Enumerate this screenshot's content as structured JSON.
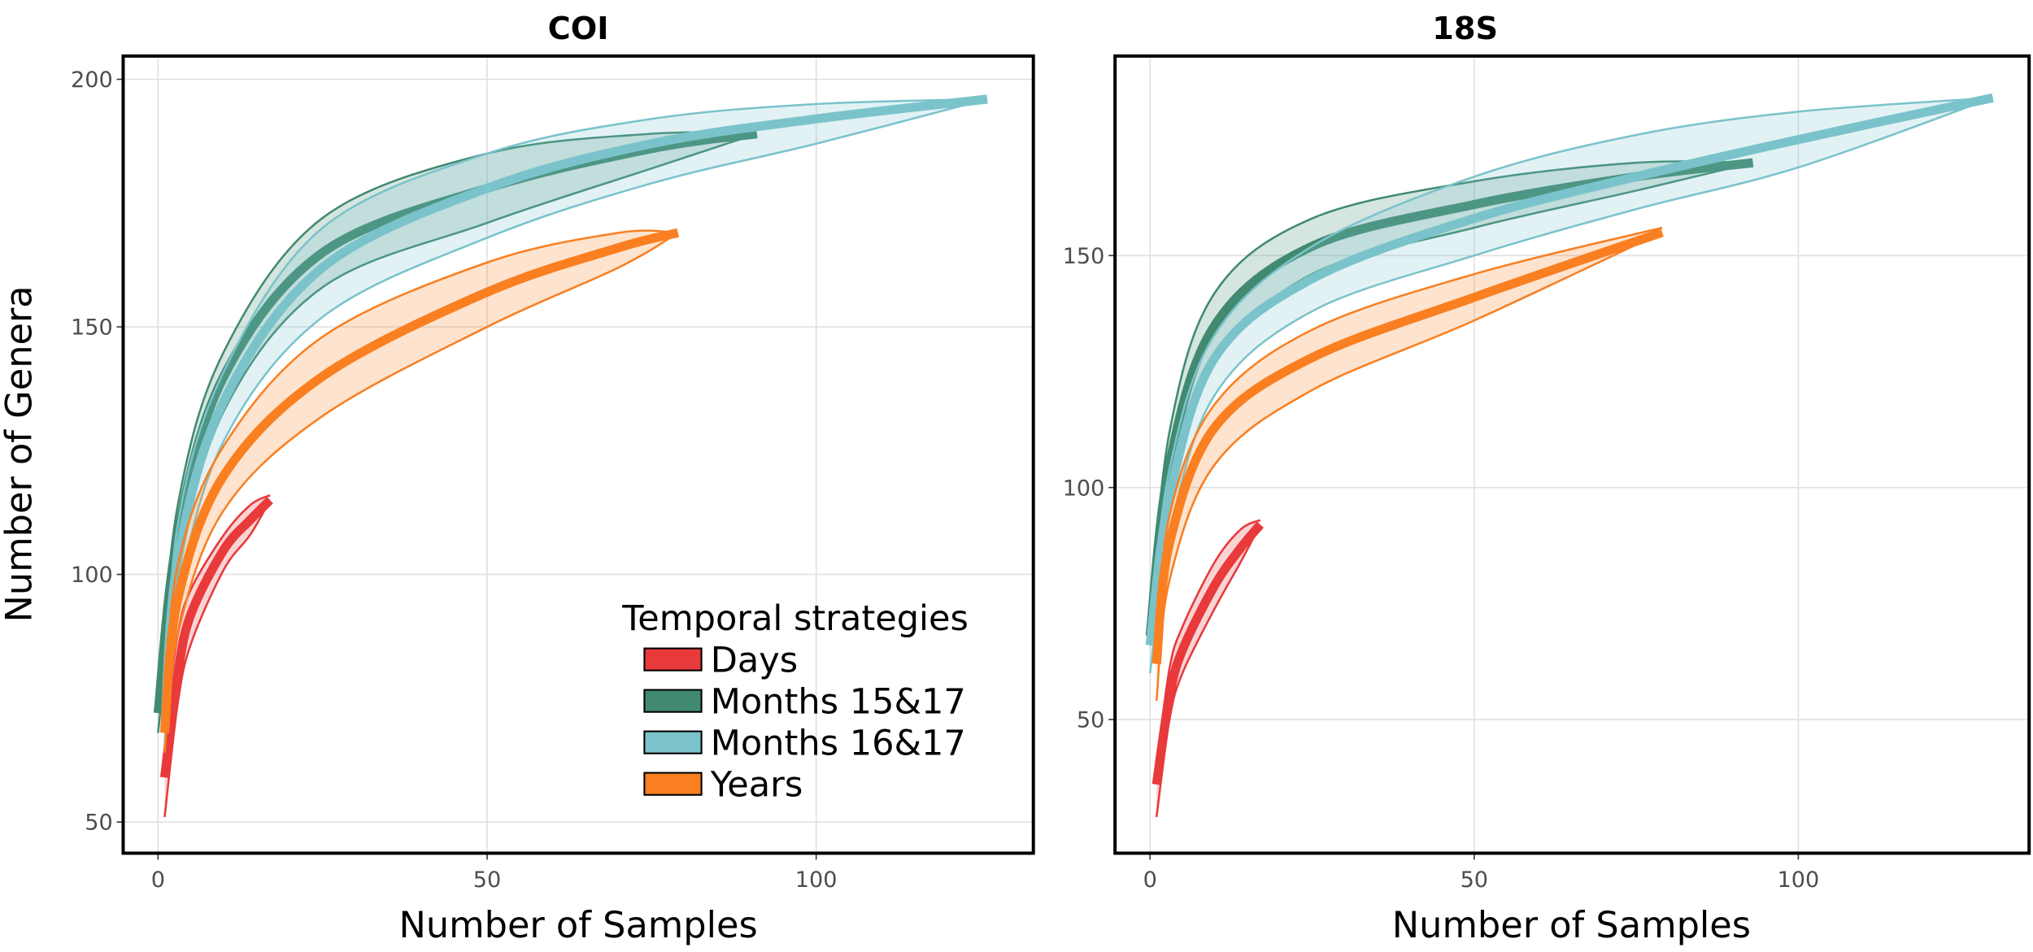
{
  "legend": {
    "title": "Temporal strategies",
    "placement": "bottom-right of first panel",
    "items": [
      {
        "label": "Days",
        "color": "#E8393B"
      },
      {
        "label": "Months 15&17",
        "color": "#418A70"
      },
      {
        "label": "Months 16&17",
        "color": "#7BC3CB"
      },
      {
        "label": "Years",
        "color": "#F97F21"
      }
    ]
  },
  "chart_data": [
    {
      "type": "line",
      "title": "COI",
      "xlabel": "Number of Samples",
      "ylabel": "Number of Genera",
      "xlim": [
        -5.3,
        133
      ],
      "ylim": [
        43.7,
        204.7
      ],
      "xticks": [
        "0",
        "50",
        "100"
      ],
      "yticks": [
        "50",
        "100",
        "150",
        "200"
      ],
      "grid": true,
      "series": [
        {
          "name": "Days",
          "x": [
            1,
            3,
            5,
            10,
            14,
            17
          ],
          "mean": [
            59,
            80,
            92,
            105,
            111,
            115
          ],
          "lower": [
            51,
            74,
            86,
            101,
            108,
            115
          ],
          "upper": [
            68,
            88,
            97,
            108,
            114,
            116
          ]
        },
        {
          "name": "Months 15&17",
          "x": [
            0,
            3,
            10,
            25,
            50,
            75,
            91
          ],
          "mean": [
            72,
            108,
            140,
            165,
            178,
            186,
            189
          ],
          "lower": [
            68,
            100,
            133,
            158,
            171,
            182,
            189
          ],
          "upper": [
            74,
            114,
            145,
            172,
            185,
            189,
            189
          ]
        },
        {
          "name": "Months 16&17",
          "x": [
            1,
            3,
            10,
            25,
            50,
            75,
            100,
            126
          ],
          "mean": [
            68,
            103,
            135,
            162,
            178,
            187,
            192,
            196
          ],
          "lower": [
            66,
            95,
            127,
            152,
            168,
            179,
            187,
            196
          ],
          "upper": [
            70,
            110,
            141,
            170,
            185,
            192,
            195,
            196
          ]
        },
        {
          "name": "Years",
          "x": [
            1,
            3,
            10,
            25,
            50,
            70,
            79
          ],
          "mean": [
            68,
            95,
            120,
            140,
            157,
            166,
            169
          ],
          "lower": [
            64,
            88,
            113,
            132,
            150,
            162,
            169
          ],
          "upper": [
            72,
            102,
            126,
            148,
            163,
            169,
            169
          ]
        }
      ]
    },
    {
      "type": "line",
      "title": "18S",
      "xlabel": "Number of Samples",
      "ylabel": "",
      "xlim": [
        -5.4,
        135.6
      ],
      "ylim": [
        21.2,
        193
      ],
      "xticks": [
        "0",
        "50",
        "100"
      ],
      "yticks": [
        "50",
        "100",
        "150"
      ],
      "grid": true,
      "series": [
        {
          "name": "Days",
          "x": [
            1,
            3,
            5,
            10,
            14,
            17
          ],
          "mean": [
            36,
            55,
            65,
            79,
            87,
            92
          ],
          "lower": [
            29,
            50,
            60,
            74,
            84,
            92
          ],
          "upper": [
            40,
            61,
            70,
            84,
            91,
            93
          ]
        },
        {
          "name": "Months 15&17",
          "x": [
            0,
            3,
            10,
            25,
            50,
            75,
            93
          ],
          "mean": [
            68,
            105,
            135,
            152,
            161,
            167,
            170
          ],
          "lower": [
            66,
            97,
            127,
            146,
            156,
            164,
            170
          ],
          "upper": [
            70,
            112,
            142,
            158,
            166,
            170,
            170
          ]
        },
        {
          "name": "Months 16&17",
          "x": [
            0,
            3,
            10,
            25,
            50,
            75,
            100,
            130
          ],
          "mean": [
            66,
            98,
            128,
            145,
            158,
            167,
            175,
            184
          ],
          "lower": [
            60,
            90,
            120,
            138,
            150,
            160,
            169,
            184
          ],
          "upper": [
            68,
            104,
            133,
            152,
            167,
            176,
            181,
            184
          ]
        },
        {
          "name": "Years",
          "x": [
            1,
            3,
            10,
            25,
            50,
            79
          ],
          "mean": [
            62,
            88,
            113,
            128,
            141,
            155
          ],
          "lower": [
            54,
            80,
            105,
            121,
            136,
            155
          ],
          "upper": [
            64,
            94,
            118,
            134,
            146,
            156
          ]
        }
      ]
    }
  ]
}
